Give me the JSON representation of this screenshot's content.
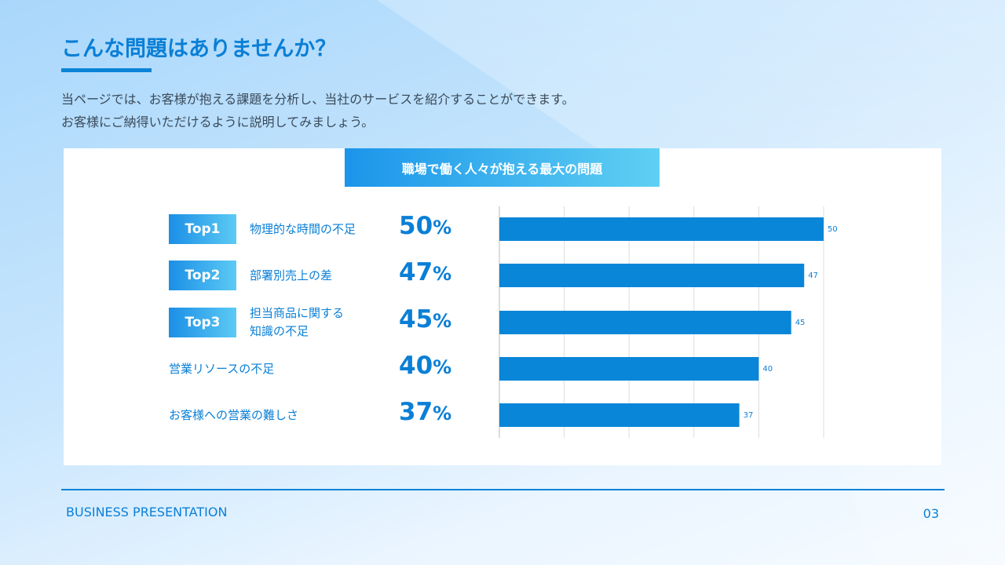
{
  "title": "こんな問題はありませんか？",
  "description": [
    "当ページでは、お客様が抱える課題を分析し、当社のサービスを紹介することができます。",
    "お客様にご納得いただけるように説明してみましょう。"
  ],
  "chart_data": {
    "type": "bar",
    "orientation": "horizontal",
    "title": "職場で働く人々が抱える最大の問題",
    "categories": [
      "物理的な時間の不足",
      "部署別売上の差",
      "担当商品に関する知識の不足",
      "営業リソースの不足",
      "お客様への営業の難しさ"
    ],
    "category_lines": [
      [
        "物理的な時間の不足"
      ],
      [
        "部署別売上の差"
      ],
      [
        "担当商品に関する",
        "知識の不足"
      ],
      [
        "営業リソースの不足"
      ],
      [
        "お客様への営業の難しさ"
      ]
    ],
    "ranks": [
      "Top1",
      "Top2",
      "Top3",
      "",
      ""
    ],
    "values": [
      50,
      47,
      45,
      40,
      37
    ],
    "value_labels": [
      "50",
      "47",
      "45",
      "40",
      "37"
    ],
    "percent_labels": [
      "50",
      "47",
      "45",
      "40",
      "37"
    ],
    "percent_unit": "%",
    "xlim": [
      0,
      50
    ],
    "grid": true,
    "bar_color": "#0a86d9"
  },
  "footer": {
    "left": "BUSINESS PRESENTATION",
    "page": "03"
  }
}
